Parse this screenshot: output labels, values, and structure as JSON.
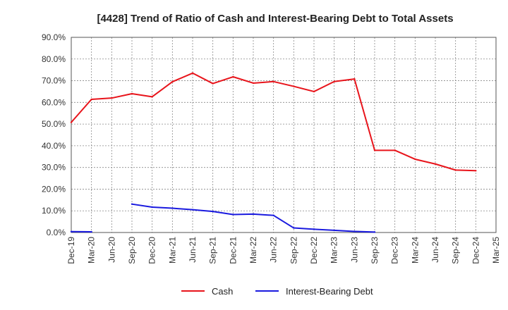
{
  "chart_data": {
    "type": "line",
    "title": "[4428]  Trend of Ratio of Cash and Interest-Bearing Debt to Total Assets",
    "xlabel": "",
    "ylabel": "",
    "ylim": [
      0,
      90
    ],
    "y_ticks": [
      "0.0%",
      "10.0%",
      "20.0%",
      "30.0%",
      "40.0%",
      "50.0%",
      "60.0%",
      "70.0%",
      "80.0%",
      "90.0%"
    ],
    "categories": [
      "Dec-19",
      "Mar-20",
      "Jun-20",
      "Sep-20",
      "Dec-20",
      "Mar-21",
      "Jun-21",
      "Sep-21",
      "Dec-21",
      "Mar-22",
      "Jun-22",
      "Sep-22",
      "Dec-22",
      "Mar-23",
      "Jun-23",
      "Sep-23",
      "Dec-23",
      "Mar-24",
      "Jun-24",
      "Sep-24",
      "Dec-24",
      "Mar-25"
    ],
    "grid": true,
    "legend_position": "bottom",
    "series": [
      {
        "name": "Cash",
        "color": "#e8141b",
        "values": [
          50.8,
          61.4,
          62.0,
          64.0,
          62.6,
          69.5,
          73.5,
          68.7,
          71.8,
          68.9,
          69.6,
          67.4,
          65.0,
          69.6,
          70.8,
          37.9,
          37.9,
          33.8,
          31.6,
          28.8,
          28.5,
          null
        ]
      },
      {
        "name": "Interest-Bearing Debt",
        "color": "#1a1adf",
        "values": [
          0.4,
          0.3,
          null,
          13.1,
          11.7,
          11.2,
          10.5,
          9.7,
          8.3,
          8.5,
          7.9,
          2.1,
          1.5,
          1.0,
          0.5,
          0.2,
          null,
          null,
          null,
          null,
          null,
          null
        ]
      }
    ]
  }
}
